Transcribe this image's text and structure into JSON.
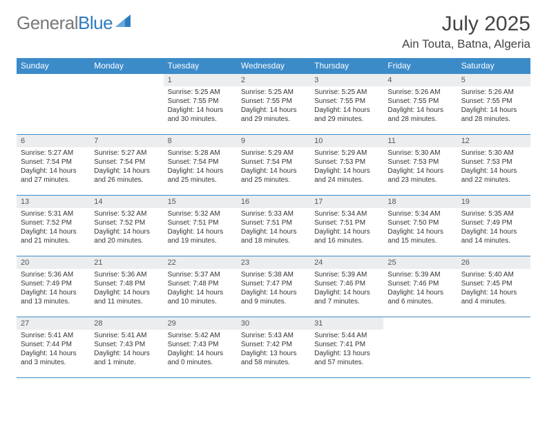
{
  "logo": {
    "part1": "General",
    "part2": "Blue"
  },
  "title": "July 2025",
  "location": "Ain Touta, Batna, Algeria",
  "colors": {
    "header_bg": "#3b8bc9",
    "header_text": "#ffffff",
    "daynum_bg": "#ebedef",
    "border": "#3b8bc9",
    "text": "#333333",
    "logo_gray": "#777777",
    "logo_blue": "#2e7bbf",
    "background": "#ffffff"
  },
  "weekdays": [
    "Sunday",
    "Monday",
    "Tuesday",
    "Wednesday",
    "Thursday",
    "Friday",
    "Saturday"
  ],
  "weeks": [
    [
      null,
      null,
      {
        "n": "1",
        "sr": "5:25 AM",
        "ss": "7:55 PM",
        "dl": "14 hours and 30 minutes."
      },
      {
        "n": "2",
        "sr": "5:25 AM",
        "ss": "7:55 PM",
        "dl": "14 hours and 29 minutes."
      },
      {
        "n": "3",
        "sr": "5:25 AM",
        "ss": "7:55 PM",
        "dl": "14 hours and 29 minutes."
      },
      {
        "n": "4",
        "sr": "5:26 AM",
        "ss": "7:55 PM",
        "dl": "14 hours and 28 minutes."
      },
      {
        "n": "5",
        "sr": "5:26 AM",
        "ss": "7:55 PM",
        "dl": "14 hours and 28 minutes."
      }
    ],
    [
      {
        "n": "6",
        "sr": "5:27 AM",
        "ss": "7:54 PM",
        "dl": "14 hours and 27 minutes."
      },
      {
        "n": "7",
        "sr": "5:27 AM",
        "ss": "7:54 PM",
        "dl": "14 hours and 26 minutes."
      },
      {
        "n": "8",
        "sr": "5:28 AM",
        "ss": "7:54 PM",
        "dl": "14 hours and 25 minutes."
      },
      {
        "n": "9",
        "sr": "5:29 AM",
        "ss": "7:54 PM",
        "dl": "14 hours and 25 minutes."
      },
      {
        "n": "10",
        "sr": "5:29 AM",
        "ss": "7:53 PM",
        "dl": "14 hours and 24 minutes."
      },
      {
        "n": "11",
        "sr": "5:30 AM",
        "ss": "7:53 PM",
        "dl": "14 hours and 23 minutes."
      },
      {
        "n": "12",
        "sr": "5:30 AM",
        "ss": "7:53 PM",
        "dl": "14 hours and 22 minutes."
      }
    ],
    [
      {
        "n": "13",
        "sr": "5:31 AM",
        "ss": "7:52 PM",
        "dl": "14 hours and 21 minutes."
      },
      {
        "n": "14",
        "sr": "5:32 AM",
        "ss": "7:52 PM",
        "dl": "14 hours and 20 minutes."
      },
      {
        "n": "15",
        "sr": "5:32 AM",
        "ss": "7:51 PM",
        "dl": "14 hours and 19 minutes."
      },
      {
        "n": "16",
        "sr": "5:33 AM",
        "ss": "7:51 PM",
        "dl": "14 hours and 18 minutes."
      },
      {
        "n": "17",
        "sr": "5:34 AM",
        "ss": "7:51 PM",
        "dl": "14 hours and 16 minutes."
      },
      {
        "n": "18",
        "sr": "5:34 AM",
        "ss": "7:50 PM",
        "dl": "14 hours and 15 minutes."
      },
      {
        "n": "19",
        "sr": "5:35 AM",
        "ss": "7:49 PM",
        "dl": "14 hours and 14 minutes."
      }
    ],
    [
      {
        "n": "20",
        "sr": "5:36 AM",
        "ss": "7:49 PM",
        "dl": "14 hours and 13 minutes."
      },
      {
        "n": "21",
        "sr": "5:36 AM",
        "ss": "7:48 PM",
        "dl": "14 hours and 11 minutes."
      },
      {
        "n": "22",
        "sr": "5:37 AM",
        "ss": "7:48 PM",
        "dl": "14 hours and 10 minutes."
      },
      {
        "n": "23",
        "sr": "5:38 AM",
        "ss": "7:47 PM",
        "dl": "14 hours and 9 minutes."
      },
      {
        "n": "24",
        "sr": "5:39 AM",
        "ss": "7:46 PM",
        "dl": "14 hours and 7 minutes."
      },
      {
        "n": "25",
        "sr": "5:39 AM",
        "ss": "7:46 PM",
        "dl": "14 hours and 6 minutes."
      },
      {
        "n": "26",
        "sr": "5:40 AM",
        "ss": "7:45 PM",
        "dl": "14 hours and 4 minutes."
      }
    ],
    [
      {
        "n": "27",
        "sr": "5:41 AM",
        "ss": "7:44 PM",
        "dl": "14 hours and 3 minutes."
      },
      {
        "n": "28",
        "sr": "5:41 AM",
        "ss": "7:43 PM",
        "dl": "14 hours and 1 minute."
      },
      {
        "n": "29",
        "sr": "5:42 AM",
        "ss": "7:43 PM",
        "dl": "14 hours and 0 minutes."
      },
      {
        "n": "30",
        "sr": "5:43 AM",
        "ss": "7:42 PM",
        "dl": "13 hours and 58 minutes."
      },
      {
        "n": "31",
        "sr": "5:44 AM",
        "ss": "7:41 PM",
        "dl": "13 hours and 57 minutes."
      },
      null,
      null
    ]
  ],
  "labels": {
    "sunrise": "Sunrise: ",
    "sunset": "Sunset: ",
    "daylight": "Daylight: "
  }
}
